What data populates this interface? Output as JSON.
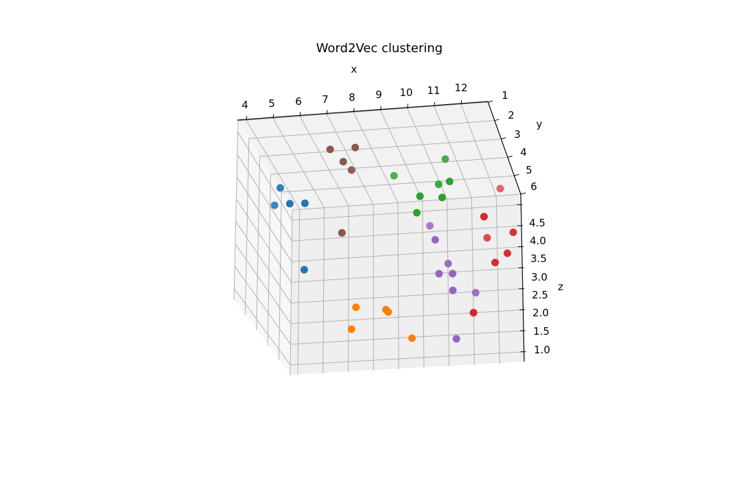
{
  "chart_data": {
    "type": "scatter",
    "title": "Word2Vec clustering",
    "xlabel": "x",
    "ylabel": "y",
    "zlabel": "z",
    "xticks": [
      "4",
      "5",
      "6",
      "7",
      "8",
      "9",
      "10",
      "11",
      "12"
    ],
    "yticks": [
      "1",
      "2",
      "3",
      "4",
      "5",
      "6"
    ],
    "zticks": [
      "1.0",
      "1.5",
      "2.0",
      "2.5",
      "3.0",
      "3.5",
      "4.0",
      "4.5"
    ],
    "xlim": [
      3.7,
      13.0
    ],
    "ylim": [
      1.0,
      6.0
    ],
    "zlim": [
      0.75,
      4.75
    ],
    "grid": true,
    "series": [
      {
        "color": "#1f77b4",
        "points": [
          [
            4.3,
            3.5,
            4.2
          ],
          [
            4.3,
            2.6,
            4.2
          ],
          [
            4.3,
            4.0,
            3.6
          ],
          [
            4.3,
            1.2,
            3.2
          ],
          [
            4.3,
            1.2,
            4.8
          ]
        ]
      },
      {
        "color": "#ff7f0e",
        "points": [
          [
            6.2,
            1.2,
            1.7
          ],
          [
            7.8,
            1.6,
            1.9
          ],
          [
            7.5,
            1.0,
            2.2
          ],
          [
            6.3,
            1.0,
            2.3
          ],
          [
            8.6,
            1.2,
            1.4
          ]
        ]
      },
      {
        "color": "#2ca02c",
        "points": [
          [
            8.9,
            1.4,
            4.3
          ],
          [
            9.8,
            1.0,
            4.8
          ],
          [
            8.7,
            3.5,
            4.3
          ],
          [
            10.3,
            1.6,
            4.9
          ],
          [
            9.1,
            1.6,
            4.6
          ],
          [
            10.5,
            2.8,
            4.9
          ],
          [
            10.1,
            2.4,
            4.5
          ]
        ]
      },
      {
        "color": "#d62728",
        "points": [
          [
            11.6,
            1.4,
            4.1
          ],
          [
            12.8,
            3.6,
            3.8
          ],
          [
            12.8,
            1.6,
            3.6
          ],
          [
            12.5,
            1.4,
            3.2
          ],
          [
            12.0,
            2.6,
            3.1
          ],
          [
            12.0,
            1.4,
            3.0
          ],
          [
            11.0,
            1.0,
            2.0
          ]
        ]
      },
      {
        "color": "#9467bd",
        "points": [
          [
            9.5,
            1.0,
            3.8
          ],
          [
            9.7,
            1.2,
            2.9
          ],
          [
            9.9,
            3.0,
            3.3
          ],
          [
            10.3,
            1.4,
            2.4
          ],
          [
            10.3,
            1.4,
            2.8
          ],
          [
            11.4,
            2.2,
            2.0
          ],
          [
            10.3,
            2.0,
            2.8
          ],
          [
            10.3,
            1.0,
            1.4
          ]
        ]
      },
      {
        "color": "#8c564b",
        "points": [
          [
            5.8,
            2.4,
            5.5
          ],
          [
            6.4,
            2.6,
            5.1
          ],
          [
            6.8,
            2.4,
            5.5
          ],
          [
            6.8,
            2.8,
            4.8
          ],
          [
            6.2,
            2.2,
            3.6
          ]
        ]
      }
    ]
  }
}
